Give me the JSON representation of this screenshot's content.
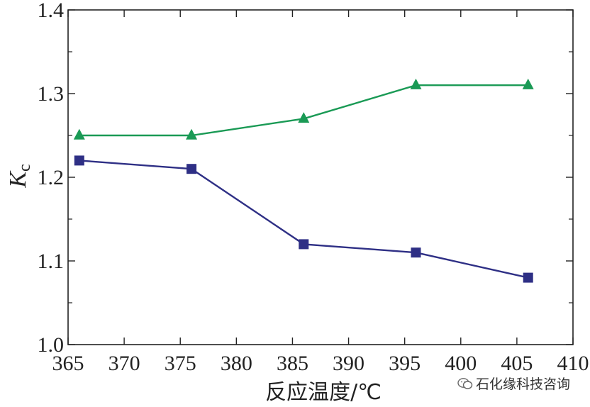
{
  "chart_data": {
    "type": "line",
    "xlabel": "反应温度/℃",
    "ylabel_main": "K",
    "ylabel_sub": "c",
    "xlim": [
      365,
      410
    ],
    "ylim": [
      1.0,
      1.4
    ],
    "xticks": [
      365,
      370,
      375,
      380,
      385,
      390,
      395,
      400,
      405,
      410
    ],
    "yticks": [
      1.0,
      1.1,
      1.2,
      1.3,
      1.4
    ],
    "ytick_labels": [
      "1.0",
      "1.1",
      "1.2",
      "1.3",
      "1.4"
    ],
    "grid": false,
    "series": [
      {
        "marker": "triangle",
        "color": "#1a9a55",
        "x": [
          366,
          376,
          386,
          396,
          406
        ],
        "y": [
          1.25,
          1.25,
          1.27,
          1.31,
          1.31
        ]
      },
      {
        "marker": "square",
        "color": "#2e2f85",
        "x": [
          366,
          376,
          386,
          396,
          406
        ],
        "y": [
          1.22,
          1.21,
          1.12,
          1.11,
          1.08
        ]
      }
    ]
  },
  "watermark": {
    "text": "石化缘科技咨询",
    "icon": "wechat-icon"
  }
}
